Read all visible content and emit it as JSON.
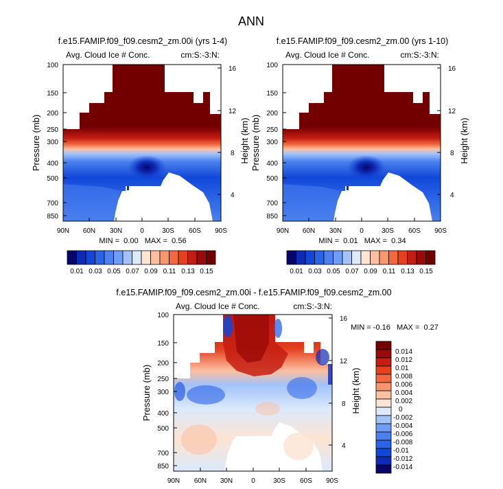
{
  "figure": {
    "title": "ANN"
  },
  "chart_data": [
    {
      "type": "heatmap",
      "title": "f.e15.FAMIP.f09_f09.cesm2_zm.00i (yrs 1-4)",
      "subtitle_left": "Avg. Cloud Ice # Conc.",
      "subtitle_right": "cm:S:-3:N:",
      "xlabel": "",
      "ylabel": "Pressure (mb)",
      "ylabel_right": "Height (km)",
      "x_ticks": [
        "90N",
        "60N",
        "30N",
        "0",
        "30S",
        "60S",
        "90S"
      ],
      "y_ticks": [
        "100",
        "150",
        "200",
        "250",
        "300",
        "400",
        "500",
        "700",
        "850"
      ],
      "y_right_ticks": [
        "16",
        "12",
        "8",
        "4"
      ],
      "stats_text": "MIN =  0.00   MAX =  0.56",
      "min": 0.0,
      "max": 0.56,
      "colorbar_labels": [
        "0.01",
        "0.03",
        "0.05",
        "0.07",
        "0.09",
        "0.11",
        "0.13",
        "0.15"
      ],
      "levels": [
        0.01,
        0.02,
        0.03,
        0.04,
        0.05,
        0.06,
        0.07,
        0.08,
        0.09,
        0.1,
        0.11,
        0.12,
        0.13,
        0.14,
        0.15
      ],
      "colormap": [
        "#07066b",
        "#0d2bb5",
        "#1147d9",
        "#2a63e6",
        "#4b80ee",
        "#6f9df5",
        "#a2c2fa",
        "#dbe9fc",
        "#fde4d3",
        "#fcc0a1",
        "#f9966d",
        "#f2693f",
        "#e5411f",
        "#c41d12",
        "#9a0a08",
        "#730000"
      ]
    },
    {
      "type": "heatmap",
      "title": "f.e15.FAMIP.f09_f09.cesm2_zm.00 (yrs 1-10)",
      "subtitle_left": "Avg. Cloud Ice # Conc.",
      "subtitle_right": "cm:S:-3:N:",
      "xlabel": "",
      "ylabel": "Pressure (mb)",
      "ylabel_right": "Height (km)",
      "x_ticks": [
        "90N",
        "60N",
        "30N",
        "0",
        "30S",
        "60S",
        "90S"
      ],
      "y_ticks": [
        "100",
        "150",
        "200",
        "250",
        "300",
        "400",
        "500",
        "700",
        "850"
      ],
      "y_right_ticks": [
        "16",
        "12",
        "8",
        "4"
      ],
      "stats_text": "MIN =  0.01   MAX =  0.34",
      "min": 0.01,
      "max": 0.34,
      "colorbar_labels": [
        "0.01",
        "0.03",
        "0.05",
        "0.07",
        "0.09",
        "0.11",
        "0.13",
        "0.15"
      ],
      "levels": [
        0.01,
        0.02,
        0.03,
        0.04,
        0.05,
        0.06,
        0.07,
        0.08,
        0.09,
        0.1,
        0.11,
        0.12,
        0.13,
        0.14,
        0.15
      ],
      "colormap": [
        "#07066b",
        "#0d2bb5",
        "#1147d9",
        "#2a63e6",
        "#4b80ee",
        "#6f9df5",
        "#a2c2fa",
        "#dbe9fc",
        "#fde4d3",
        "#fcc0a1",
        "#f9966d",
        "#f2693f",
        "#e5411f",
        "#c41d12",
        "#9a0a08",
        "#730000"
      ]
    },
    {
      "type": "heatmap",
      "title": "f.e15.FAMIP.f09_f09.cesm2_zm.00i - f.e15.FAMIP.f09_f09.cesm2_zm.00",
      "subtitle_left": "Avg. Cloud Ice # Conc.",
      "subtitle_right": "cm:S:-3:N:",
      "xlabel": "",
      "ylabel": "Pressure (mb)",
      "ylabel_right": "Height (km)",
      "x_ticks": [
        "90N",
        "60N",
        "30N",
        "0",
        "30S",
        "60S",
        "90S"
      ],
      "y_ticks": [
        "100",
        "150",
        "200",
        "250",
        "300",
        "400",
        "500",
        "700",
        "850"
      ],
      "y_right_ticks": [
        "16",
        "12",
        "8",
        "4"
      ],
      "stats_text": "MIN = -0.16   MAX =  0.27",
      "min": -0.16,
      "max": 0.27,
      "colorbar_labels": [
        "0.014",
        "0.012",
        "0.01",
        "0.008",
        "0.006",
        "0.004",
        "0.002",
        "0",
        "-0.002",
        "-0.004",
        "-0.006",
        "-0.008",
        "-0.01",
        "-0.012",
        "-0.014"
      ],
      "levels": [
        -0.014,
        -0.012,
        -0.01,
        -0.008,
        -0.006,
        -0.004,
        -0.002,
        0,
        0.002,
        0.004,
        0.006,
        0.008,
        0.01,
        0.012,
        0.014
      ],
      "colormap": [
        "#07066b",
        "#0d2bb5",
        "#1147d9",
        "#2a63e6",
        "#4b80ee",
        "#6f9df5",
        "#a2c2fa",
        "#dbe9fc",
        "#fde4d3",
        "#fcc0a1",
        "#f9966d",
        "#f2693f",
        "#e5411f",
        "#c41d12",
        "#9a0a08",
        "#730000"
      ]
    }
  ]
}
